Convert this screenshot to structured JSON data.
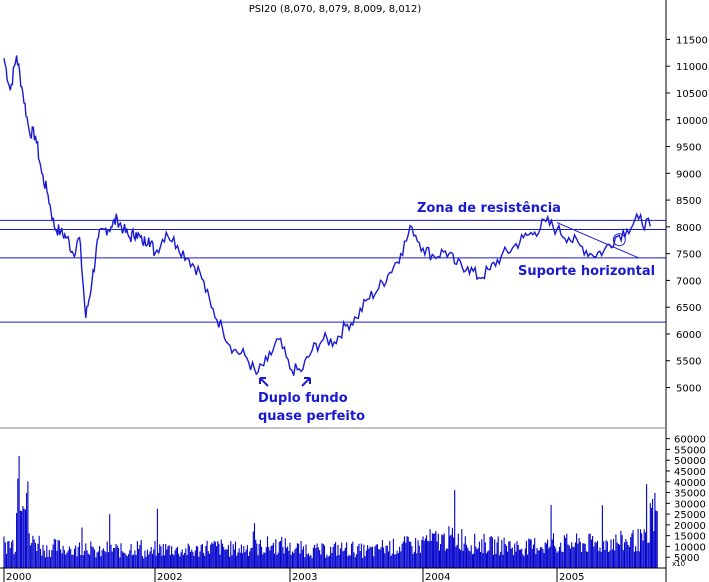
{
  "chart_data": [
    {
      "type": "line",
      "title": "PSI20 (8,070, 8,079, 8,009, 8,012)",
      "x_ticks": [
        "2000",
        "2002",
        "2003",
        "2004",
        "2005"
      ],
      "yticks": [
        5000,
        5500,
        6000,
        6500,
        7000,
        7500,
        8000,
        8500,
        9000,
        9500,
        10000,
        10500,
        11000,
        11500
      ],
      "ylim": [
        4300,
        11900
      ],
      "grid": false,
      "series": [
        {
          "color": "#1a1ad0",
          "points": [
            [
              "2000-01",
              11150
            ],
            [
              "2000-02",
              10550
            ],
            [
              "2000-03",
              11200
            ],
            [
              "2000-04",
              10500
            ],
            [
              "2000-05",
              9800
            ],
            [
              "2000-06",
              9700
            ],
            [
              "2000-07",
              9000
            ],
            [
              "2000-08",
              8600
            ],
            [
              "2000-09",
              8000
            ],
            [
              "2000-10",
              7900
            ],
            [
              "2000-11",
              7800
            ],
            [
              "2000-12",
              7500
            ],
            [
              "2001-01",
              7800
            ],
            [
              "2001-02",
              6300
            ],
            [
              "2001-03",
              7000
            ],
            [
              "2001-04",
              7800
            ],
            [
              "2001-05",
              7950
            ],
            [
              "2001-06",
              8000
            ],
            [
              "2001-07",
              8150
            ],
            [
              "2001-08",
              7950
            ],
            [
              "2001-09",
              7800
            ],
            [
              "2001-10",
              7900
            ],
            [
              "2001-11",
              7700
            ],
            [
              "2001-12",
              7800
            ],
            [
              "2002-01",
              7500
            ],
            [
              "2002-02",
              7900
            ],
            [
              "2002-03",
              7650
            ],
            [
              "2002-04",
              7400
            ],
            [
              "2002-05",
              7150
            ],
            [
              "2002-06",
              6500
            ],
            [
              "2002-07",
              6100
            ],
            [
              "2002-08",
              5700
            ],
            [
              "2002-09",
              5600
            ],
            [
              "2002-10",
              5250
            ],
            [
              "2002-11",
              5500
            ],
            [
              "2002-12",
              5900
            ],
            [
              "2003-01",
              5350
            ],
            [
              "2003-02",
              5300
            ],
            [
              "2003-03",
              5700
            ],
            [
              "2003-04",
              5900
            ],
            [
              "2003-05",
              5850
            ],
            [
              "2003-06",
              6150
            ],
            [
              "2003-07",
              6300
            ],
            [
              "2003-08",
              6650
            ],
            [
              "2003-09",
              6850
            ],
            [
              "2003-10",
              7150
            ],
            [
              "2003-11",
              7500
            ],
            [
              "2003-12",
              8000
            ],
            [
              "2004-01",
              7600
            ],
            [
              "2004-02",
              7450
            ],
            [
              "2004-03",
              7550
            ],
            [
              "2004-04",
              7300
            ],
            [
              "2004-05",
              7250
            ],
            [
              "2004-06",
              7050
            ],
            [
              "2004-07",
              7200
            ],
            [
              "2004-08",
              7450
            ],
            [
              "2004-09",
              7600
            ],
            [
              "2004-10",
              7800
            ],
            [
              "2004-11",
              7900
            ],
            [
              "2004-12",
              8100
            ],
            [
              "2005-01",
              7950
            ],
            [
              "2005-02",
              7800
            ],
            [
              "2005-03",
              7650
            ],
            [
              "2005-04",
              7480
            ],
            [
              "2005-05",
              7550
            ],
            [
              "2005-06",
              7800
            ],
            [
              "2005-07",
              7950
            ],
            [
              "2005-08",
              8150
            ],
            [
              "2005-09",
              8010
            ]
          ]
        }
      ],
      "horizontal_lines": [
        8120,
        7950,
        7420,
        6220
      ],
      "annotations": [
        {
          "text": "Zona de resistência",
          "at": [
            "2004-01",
            8250
          ]
        },
        {
          "text": "Suporte horizontal",
          "at": [
            "2004-08",
            7230
          ]
        },
        {
          "text": "Duplo fundo",
          "at": [
            "2002-10",
            4990
          ]
        },
        {
          "text": "quase perfeito",
          "at": [
            "2002-10",
            4720
          ]
        }
      ]
    },
    {
      "type": "bar",
      "yticks": [
        5000,
        10000,
        15000,
        20000,
        25000,
        30000,
        35000,
        40000,
        45000,
        50000,
        55000,
        60000
      ],
      "ylim": [
        0,
        64000
      ],
      "bottom_tick": "x10",
      "color": "#0000cc",
      "x": [
        "2000-01",
        "2000-03",
        "2000-05",
        "2000-07",
        "2000-09",
        "2000-11",
        "2001-01",
        "2001-03",
        "2001-05",
        "2001-07",
        "2001-09",
        "2001-11",
        "2002-01",
        "2002-03",
        "2002-05",
        "2002-07",
        "2002-09",
        "2002-11",
        "2003-01",
        "2003-03",
        "2003-05",
        "2003-07",
        "2003-09",
        "2003-11",
        "2004-01",
        "2004-03",
        "2004-05",
        "2004-07",
        "2004-09",
        "2004-11",
        "2005-01",
        "2005-03",
        "2005-05",
        "2005-07",
        "2005-09"
      ],
      "values": [
        14000,
        52000,
        15000,
        11000,
        12000,
        10000,
        13000,
        9000,
        11000,
        10000,
        12000,
        9000,
        11000,
        10000,
        12000,
        11000,
        12000,
        13000,
        11000,
        10000,
        11000,
        10000,
        12000,
        13000,
        16000,
        17000,
        14000,
        13000,
        12000,
        13000,
        14000,
        14000,
        15000,
        16000,
        32000
      ]
    }
  ]
}
